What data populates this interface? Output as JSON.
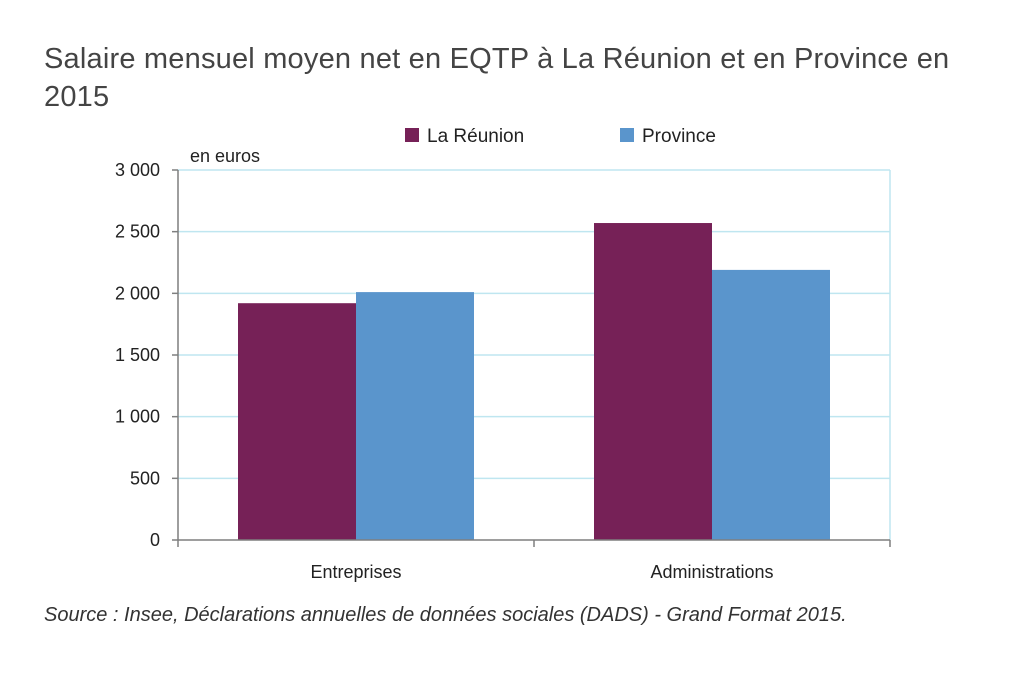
{
  "title": "Salaire mensuel moyen net en EQTP à La Réunion et en Province en 2015",
  "source": "Source : Insee, Déclarations annuelles de données sociales (DADS) - Grand Format 2015.",
  "colors": {
    "reunion": "#762157",
    "province": "#5A95CC",
    "grid": "#BFE6F0",
    "axis": "#7F7F7F"
  },
  "chart_data": {
    "type": "bar",
    "title": "Salaire mensuel moyen net en EQTP à La Réunion et en Province en 2015",
    "ylabel": "en euros",
    "xlabel": "",
    "categories": [
      "Entreprises",
      "Administrations"
    ],
    "series": [
      {
        "name": "La Réunion",
        "values": [
          1920,
          2570
        ]
      },
      {
        "name": "Province",
        "values": [
          2010,
          2190
        ]
      }
    ],
    "ylim": [
      0,
      3000
    ],
    "yticks": [
      0,
      500,
      1000,
      1500,
      2000,
      2500,
      3000
    ],
    "ytick_labels": [
      "0",
      "500",
      "1 000",
      "1 500",
      "2 000",
      "2 500",
      "3 000"
    ],
    "grid": true,
    "legend": "top"
  }
}
